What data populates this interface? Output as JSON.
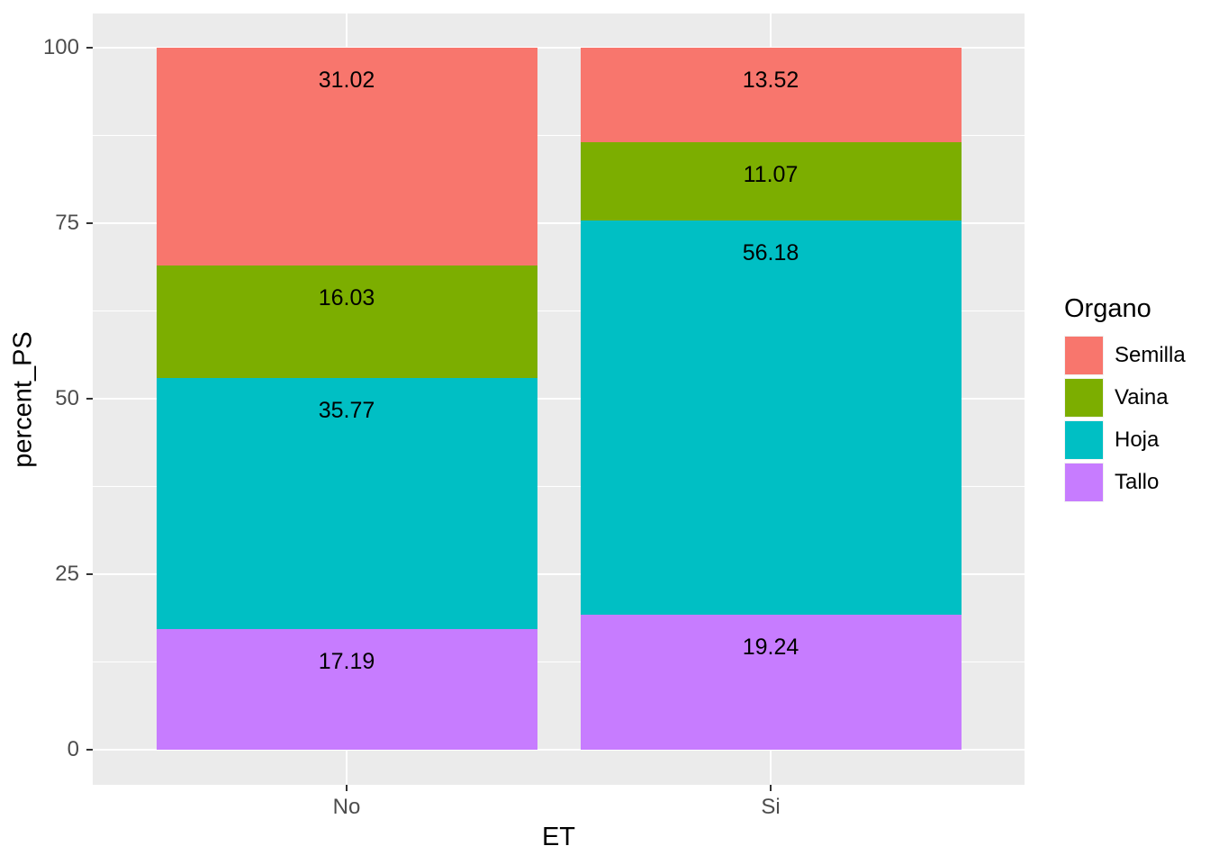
{
  "chart_data": {
    "type": "bar",
    "stacked": true,
    "categories": [
      "No",
      "Si"
    ],
    "series": [
      {
        "name": "Tallo",
        "color": "#C77CFF",
        "values": [
          17.19,
          19.24
        ]
      },
      {
        "name": "Hoja",
        "color": "#00BFC4",
        "values": [
          35.77,
          56.18
        ]
      },
      {
        "name": "Vaina",
        "color": "#7CAE00",
        "values": [
          16.03,
          11.07
        ]
      },
      {
        "name": "Semilla",
        "color": "#F8766D",
        "values": [
          31.02,
          13.52
        ]
      }
    ],
    "bar_value_labels": {
      "No": {
        "Semilla": "31.02",
        "Vaina": "16.03",
        "Hoja": "35.77",
        "Tallo": "17.19"
      },
      "Si": {
        "Semilla": "13.52",
        "Vaina": "11.07",
        "Hoja": "56.18",
        "Tallo": "19.24"
      }
    },
    "xlabel": "ET",
    "ylabel": "percent_PS",
    "ylim": [
      0,
      100
    ],
    "yticks": [
      0,
      25,
      50,
      75,
      100
    ],
    "y_minor_ticks": [
      12.5,
      37.5,
      62.5,
      87.5
    ],
    "grid": true,
    "legend": {
      "title": "Organo",
      "position": "right",
      "order": [
        "Semilla",
        "Vaina",
        "Hoja",
        "Tallo"
      ]
    }
  },
  "style": {
    "panel_background": "#EBEBEB",
    "grid_color": "#FFFFFF",
    "axis_text_color": "#4D4D4D",
    "tick_mark_color": "#333333",
    "bar_label_color": "#000000",
    "legend_key_background": "#F2F2F2",
    "figure_background": "#FFFFFF"
  }
}
